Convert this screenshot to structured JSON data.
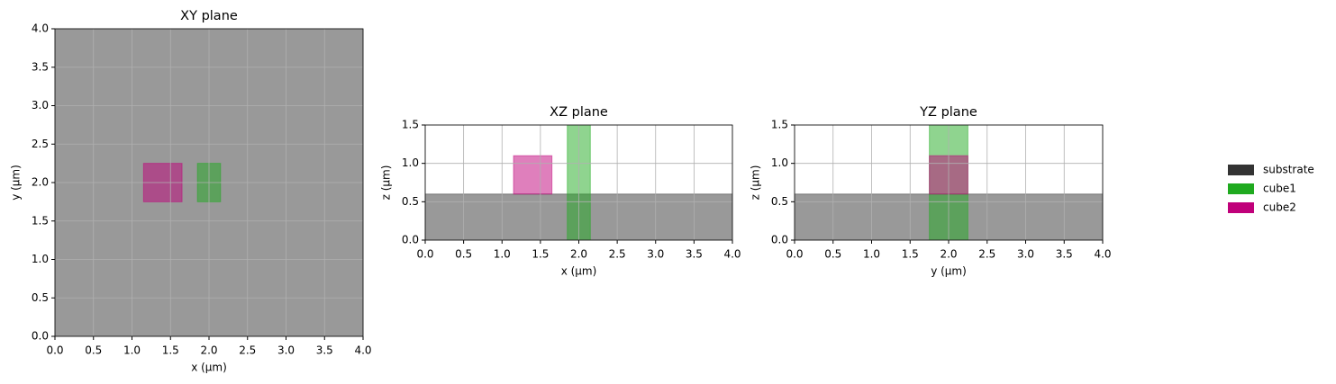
{
  "chart_data": [
    {
      "type": "rectangles",
      "title": "XY plane",
      "xlabel": "x (µm)",
      "ylabel": "y (µm)",
      "xlim": [
        0,
        4
      ],
      "ylim": [
        0,
        4
      ],
      "grid": true,
      "opacity": 0.5,
      "xticks": [
        {
          "value": 0,
          "label": "0.0"
        },
        {
          "value": 0.5,
          "label": "0.5"
        },
        {
          "value": 1,
          "label": "1.0"
        },
        {
          "value": 1.5,
          "label": "1.5"
        },
        {
          "value": 2,
          "label": "2.0"
        },
        {
          "value": 2.5,
          "label": "2.5"
        },
        {
          "value": 3,
          "label": "3.0"
        },
        {
          "value": 3.5,
          "label": "3.5"
        },
        {
          "value": 4,
          "label": "4.0"
        }
      ],
      "yticks": [
        {
          "value": 0,
          "label": "0.0"
        },
        {
          "value": 0.5,
          "label": "0.5"
        },
        {
          "value": 1,
          "label": "1.0"
        },
        {
          "value": 1.5,
          "label": "1.5"
        },
        {
          "value": 2,
          "label": "2.0"
        },
        {
          "value": 2.5,
          "label": "2.5"
        },
        {
          "value": 3,
          "label": "3.0"
        },
        {
          "value": 3.5,
          "label": "3.5"
        },
        {
          "value": 4,
          "label": "4.0"
        }
      ],
      "series": [
        {
          "name": "substrate",
          "color": "#333333",
          "x": [
            0,
            4
          ],
          "y": [
            0,
            4
          ]
        },
        {
          "name": "cube1",
          "color": "#1faa1f",
          "x": [
            1.85,
            2.15
          ],
          "y": [
            1.75,
            2.25
          ]
        },
        {
          "name": "cube2",
          "color": "#c0007a",
          "x": [
            1.15,
            1.65
          ],
          "y": [
            1.75,
            2.25
          ]
        }
      ]
    },
    {
      "type": "rectangles",
      "title": "XZ plane",
      "xlabel": "x (µm)",
      "ylabel": "z (µm)",
      "xlim": [
        0,
        4
      ],
      "ylim": [
        0,
        1.5
      ],
      "grid": true,
      "opacity": 0.5,
      "xticks": [
        {
          "value": 0,
          "label": "0.0"
        },
        {
          "value": 0.5,
          "label": "0.5"
        },
        {
          "value": 1,
          "label": "1.0"
        },
        {
          "value": 1.5,
          "label": "1.5"
        },
        {
          "value": 2,
          "label": "2.0"
        },
        {
          "value": 2.5,
          "label": "2.5"
        },
        {
          "value": 3,
          "label": "3.0"
        },
        {
          "value": 3.5,
          "label": "3.5"
        },
        {
          "value": 4,
          "label": "4.0"
        }
      ],
      "yticks": [
        {
          "value": 0,
          "label": "0.0"
        },
        {
          "value": 0.5,
          "label": "0.5"
        },
        {
          "value": 1,
          "label": "1.0"
        },
        {
          "value": 1.5,
          "label": "1.5"
        }
      ],
      "series": [
        {
          "name": "substrate",
          "color": "#333333",
          "x": [
            0,
            4
          ],
          "y": [
            0,
            0.6
          ]
        },
        {
          "name": "cube1",
          "color": "#1faa1f",
          "x": [
            1.85,
            2.15
          ],
          "y": [
            0,
            1.5
          ]
        },
        {
          "name": "cube2",
          "color": "#c0007a",
          "x": [
            1.15,
            1.65
          ],
          "y": [
            0.6,
            1.1
          ]
        }
      ]
    },
    {
      "type": "rectangles",
      "title": "YZ plane",
      "xlabel": "y (µm)",
      "ylabel": "z (µm)",
      "xlim": [
        0,
        4
      ],
      "ylim": [
        0,
        1.5
      ],
      "grid": true,
      "opacity": 0.5,
      "xticks": [
        {
          "value": 0,
          "label": "0.0"
        },
        {
          "value": 0.5,
          "label": "0.5"
        },
        {
          "value": 1,
          "label": "1.0"
        },
        {
          "value": 1.5,
          "label": "1.5"
        },
        {
          "value": 2,
          "label": "2.0"
        },
        {
          "value": 2.5,
          "label": "2.5"
        },
        {
          "value": 3,
          "label": "3.0"
        },
        {
          "value": 3.5,
          "label": "3.5"
        },
        {
          "value": 4,
          "label": "4.0"
        }
      ],
      "yticks": [
        {
          "value": 0,
          "label": "0.0"
        },
        {
          "value": 0.5,
          "label": "0.5"
        },
        {
          "value": 1,
          "label": "1.0"
        },
        {
          "value": 1.5,
          "label": "1.5"
        }
      ],
      "series": [
        {
          "name": "substrate",
          "color": "#333333",
          "x": [
            0,
            4
          ],
          "y": [
            0,
            0.6
          ]
        },
        {
          "name": "cube1",
          "color": "#1faa1f",
          "x": [
            1.75,
            2.25
          ],
          "y": [
            0,
            1.5
          ]
        },
        {
          "name": "cube2",
          "color": "#c0007a",
          "x": [
            1.75,
            2.25
          ],
          "y": [
            0.6,
            1.1
          ]
        }
      ]
    }
  ]
}
